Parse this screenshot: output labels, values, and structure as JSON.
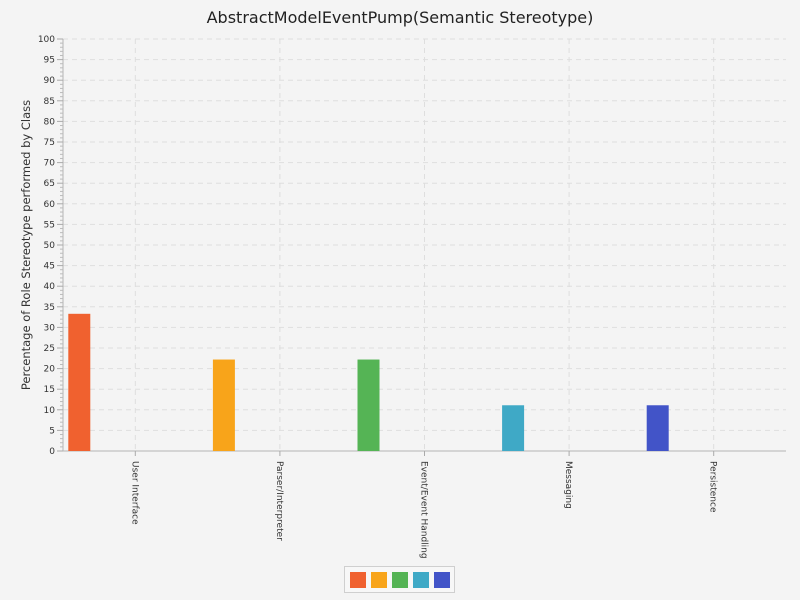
{
  "chart_data": {
    "type": "bar",
    "title": "AbstractModelEventPump(Semantic Stereotype)",
    "xlabel": "",
    "ylabel": "Percentage of Role Stereotype performed by Class",
    "ylim": [
      0,
      100
    ],
    "ytick_step": 5,
    "grid": true,
    "legend_position": "bottom",
    "categories": [
      "User Interface",
      "Parser/Interpreter",
      "Event/Event Handling",
      "Messaging",
      "Persistence"
    ],
    "values": [
      33.3,
      22.2,
      22.2,
      11.1,
      11.1
    ],
    "colors": [
      "#f0612f",
      "#f8a41a",
      "#55b455",
      "#3fa9c6",
      "#4254c8"
    ]
  }
}
